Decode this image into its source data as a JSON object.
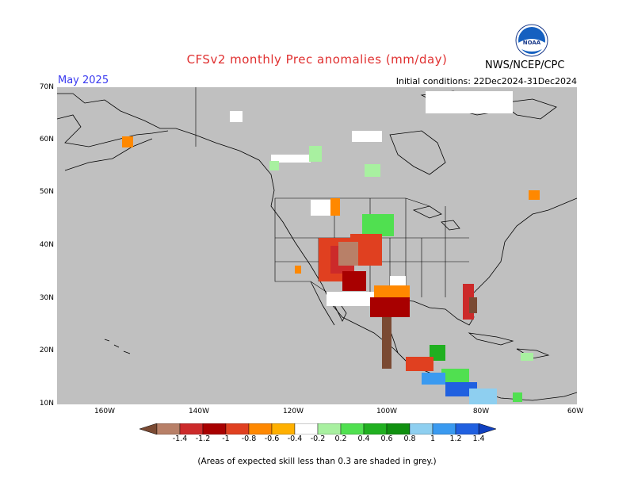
{
  "title": "CFSv2 monthly Prec anomalies (mm/day)",
  "month": "May 2025",
  "initial_conditions": "Initial conditions: 22Dec2024-31Dec2024",
  "agency": "NWS/NCEP/CPC",
  "logo_text": "NOAA",
  "footnote": "(Areas of expected skill less than 0.3 are shaded in grey.)",
  "lat_labels": [
    "70N",
    "60N",
    "50N",
    "40N",
    "30N",
    "20N",
    "10N"
  ],
  "lon_labels": [
    "160W",
    "140W",
    "120W",
    "100W",
    "80W",
    "60W"
  ],
  "colorbar": {
    "levels": [
      "-1.4",
      "-1.2",
      "-1",
      "-0.8",
      "-0.6",
      "-0.4",
      "-0.2",
      "0.2",
      "0.4",
      "0.6",
      "0.8",
      "1",
      "1.2",
      "1.4"
    ],
    "colors": [
      "#7a4a33",
      "#b88068",
      "#cc2a2a",
      "#a80000",
      "#e04020",
      "#ff8800",
      "#ffb000",
      "#ffffff",
      "#a8f0a0",
      "#50e050",
      "#20b020",
      "#109010",
      "#8ecff0",
      "#3a9af0",
      "#2060e0",
      "#1040c0"
    ]
  },
  "colors": {
    "land": "#c0c0c0",
    "title": "#e03030",
    "month": "#3a3af0"
  }
}
